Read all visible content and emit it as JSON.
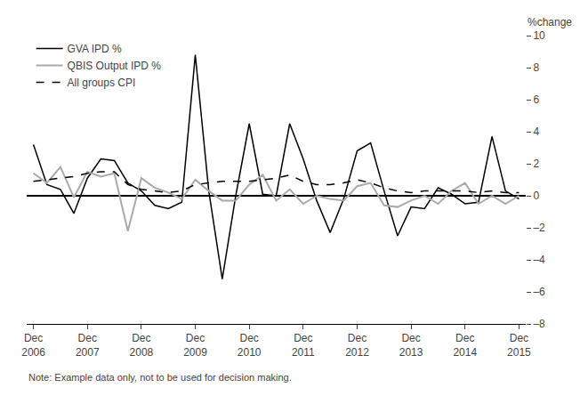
{
  "chart_data": {
    "type": "line",
    "ylabel": "%change",
    "annotations": [
      "Note: Example data only, not to be used for decision making."
    ],
    "categories": [
      "Dec\n2006",
      null,
      null,
      null,
      "Dec\n2007",
      null,
      null,
      null,
      "Dec\n2008",
      null,
      null,
      null,
      "Dec\n2009",
      null,
      null,
      null,
      "Dec\n2010",
      null,
      null,
      null,
      "Dec\n2011",
      null,
      null,
      null,
      "Dec\n2012",
      null,
      null,
      null,
      "Dec\n2013",
      null,
      null,
      null,
      "Dec\n2014",
      null,
      null,
      null,
      "Dec\n2015"
    ],
    "series": [
      {
        "name": "GVA IPD %",
        "color": "#000000",
        "line_style": "solid",
        "values": [
          3.2,
          0.7,
          0.4,
          -1.1,
          1.1,
          2.3,
          2.2,
          0.8,
          0.3,
          -0.6,
          -0.8,
          -0.4,
          8.8,
          0.3,
          -5.2,
          0.0,
          4.5,
          0.1,
          0.0,
          4.5,
          2.3,
          -0.3,
          -2.3,
          -0.2,
          2.8,
          3.3,
          0.3,
          -2.5,
          -0.7,
          -0.8,
          0.5,
          0.1,
          -0.5,
          -0.4,
          3.7,
          0.3,
          -0.2
        ]
      },
      {
        "name": "QBIS Output IPD %",
        "color": "#aaaaaa",
        "line_style": "solid",
        "values": [
          1.4,
          0.8,
          1.8,
          -0.1,
          1.5,
          1.2,
          1.4,
          -2.2,
          1.1,
          0.5,
          0.2,
          -0.2,
          1.0,
          0.3,
          -0.3,
          -0.3,
          0.7,
          1.3,
          -0.3,
          0.4,
          -0.5,
          0.0,
          -0.2,
          -0.3,
          0.6,
          0.8,
          -0.6,
          -0.7,
          -0.3,
          0.0,
          -0.5,
          0.3,
          0.8,
          -0.5,
          0.0,
          -0.5,
          0.0
        ]
      },
      {
        "name": "All groups CPI",
        "color": "#000000",
        "line_style": "dash",
        "values": [
          0.9,
          1.0,
          1.1,
          1.2,
          1.4,
          1.5,
          1.5,
          0.7,
          0.4,
          0.3,
          0.2,
          0.3,
          0.7,
          0.8,
          0.9,
          0.9,
          0.9,
          1.0,
          1.1,
          1.3,
          0.9,
          0.7,
          0.7,
          0.8,
          1.0,
          0.8,
          0.5,
          0.3,
          0.2,
          0.3,
          0.3,
          0.3,
          0.3,
          0.2,
          0.3,
          0.2,
          0.2
        ]
      }
    ],
    "ylim": [
      -8,
      10
    ],
    "yticks": [
      {
        "value": -8,
        "label": "–8"
      },
      {
        "value": -6,
        "label": "–6"
      },
      {
        "value": -4,
        "label": "–4"
      },
      {
        "value": -2,
        "label": "–2"
      },
      0,
      2,
      4,
      6,
      8,
      10
    ],
    "grid": false,
    "legend": "upper left"
  }
}
